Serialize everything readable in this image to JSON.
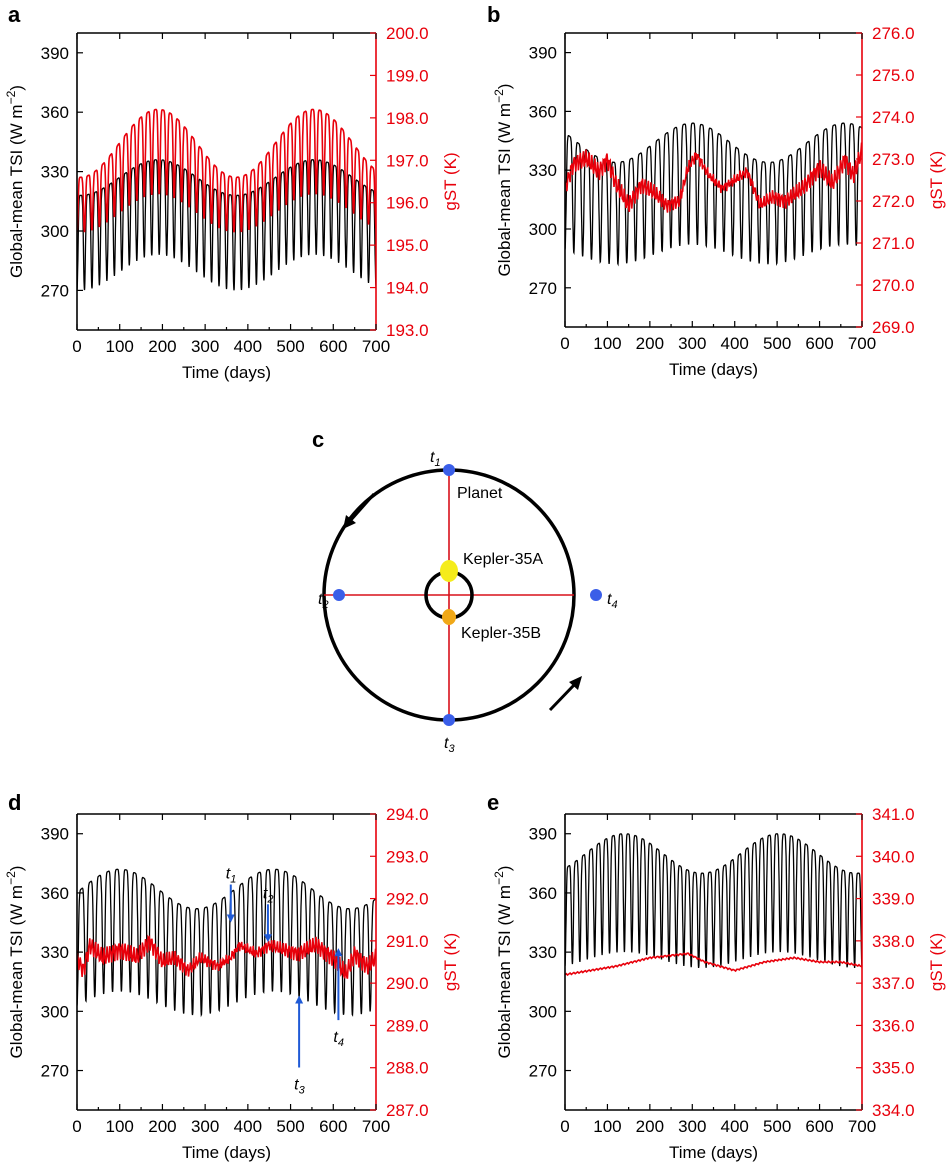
{
  "figure_colors": {
    "tsi": "#000000",
    "gst": "#e8000b",
    "planet": "#3a5ee8",
    "star_a": "#f5ec1b",
    "star_b": "#f0a818",
    "annotation": "#1f5ad6"
  },
  "chart_data": [
    {
      "panel": "a",
      "type": "line",
      "xlabel": "Time (days)",
      "xlim": [
        0,
        700
      ],
      "xticks": [
        0,
        100,
        200,
        300,
        400,
        500,
        600,
        700
      ],
      "ylabel": "Global-mean TSI (W m−2)",
      "ylabel_main": "Global-mean TSI (W m",
      "ylabel_sup": "−2",
      "ylabel_close": ")",
      "ylim": [
        250,
        400
      ],
      "yticks": [
        270,
        300,
        330,
        360,
        390
      ],
      "y2label": "gST (K)",
      "y2lim": [
        193.0,
        200.0
      ],
      "y2ticks": [
        "193.0",
        "194.0",
        "195.0",
        "196.0",
        "197.0",
        "198.0",
        "199.0",
        "200.0"
      ],
      "series": [
        {
          "name": "TSI",
          "axis": "left",
          "color": "#000000",
          "period_days": 17.5,
          "envelope_period_days": 365,
          "peak_range": [
            318,
            336
          ],
          "trough_range": [
            270,
            288
          ],
          "peak_max_day": 190,
          "start_value": 308
        },
        {
          "name": "gST",
          "axis": "right",
          "color": "#e8000b",
          "period_days": 17.5,
          "envelope_period_days": 365,
          "peak_range": [
            196.6,
            198.2
          ],
          "trough_range": [
            195.3,
            196.2
          ],
          "peak_max_day": 190,
          "start_value": 196.0
        }
      ]
    },
    {
      "panel": "b",
      "type": "line",
      "xlabel": "Time (days)",
      "xlim": [
        0,
        700
      ],
      "xticks": [
        0,
        100,
        200,
        300,
        400,
        500,
        600,
        700
      ],
      "ylabel": "Global-mean TSI (W m−2)",
      "ylabel_main": "Global-mean TSI (W m",
      "ylabel_sup": "−2",
      "ylabel_close": ")",
      "ylim": [
        250,
        400
      ],
      "yticks": [
        270,
        300,
        330,
        360,
        390
      ],
      "y2label": "gST (K)",
      "y2lim": [
        269.0,
        276.0
      ],
      "y2ticks": [
        "269.0",
        "270.0",
        "271.0",
        "272.0",
        "273.0",
        "274.0",
        "275.0",
        "276.0"
      ],
      "series": [
        {
          "name": "TSI",
          "axis": "left",
          "color": "#000000",
          "period_days": 20.8,
          "envelope_period_days": 360,
          "peak_range": [
            334,
            354
          ],
          "trough_range": [
            282,
            292
          ],
          "peak_max_day": 300,
          "start_value": 320
        },
        {
          "name": "gST",
          "axis": "right",
          "color": "#e8000b",
          "style": "noisy",
          "points": [
            [
              0,
              272.3
            ],
            [
              20,
              272.9
            ],
            [
              50,
              273.0
            ],
            [
              80,
              272.7
            ],
            [
              100,
              273.0
            ],
            [
              120,
              272.4
            ],
            [
              150,
              271.9
            ],
            [
              180,
              272.4
            ],
            [
              210,
              272.2
            ],
            [
              240,
              271.9
            ],
            [
              270,
              272.0
            ],
            [
              290,
              272.8
            ],
            [
              310,
              273.1
            ],
            [
              340,
              272.6
            ],
            [
              370,
              272.3
            ],
            [
              400,
              272.5
            ],
            [
              430,
              272.7
            ],
            [
              460,
              271.9
            ],
            [
              490,
              272.1
            ],
            [
              520,
              272.0
            ],
            [
              560,
              272.3
            ],
            [
              600,
              272.8
            ],
            [
              630,
              272.4
            ],
            [
              660,
              273.0
            ],
            [
              680,
              272.6
            ],
            [
              700,
              273.2
            ]
          ]
        }
      ]
    },
    {
      "panel": "d",
      "type": "line",
      "xlabel": "Time (days)",
      "xlim": [
        0,
        700
      ],
      "xticks": [
        0,
        100,
        200,
        300,
        400,
        500,
        600,
        700
      ],
      "ylabel": "Global-mean TSI (W m−2)",
      "ylabel_main": "Global-mean TSI (W m",
      "ylabel_sup": "−2",
      "ylabel_close": ")",
      "ylim": [
        250,
        400
      ],
      "yticks": [
        270,
        300,
        330,
        360,
        390
      ],
      "y2label": "gST (K)",
      "y2lim": [
        287.0,
        294.0
      ],
      "y2ticks": [
        "287.0",
        "288.0",
        "289.0",
        "290.0",
        "291.0",
        "292.0",
        "293.0",
        "294.0"
      ],
      "series": [
        {
          "name": "TSI",
          "axis": "left",
          "color": "#000000",
          "period_days": 20.8,
          "envelope_period_days": 360,
          "peak_range": [
            352,
            372
          ],
          "trough_range": [
            298,
            310
          ],
          "peak_max_day": 100,
          "start_value": 345
        },
        {
          "name": "gST",
          "axis": "right",
          "color": "#e8000b",
          "style": "noisy",
          "points": [
            [
              0,
              290.6
            ],
            [
              15,
              290.3
            ],
            [
              30,
              290.9
            ],
            [
              60,
              290.6
            ],
            [
              100,
              290.8
            ],
            [
              140,
              290.6
            ],
            [
              170,
              291.0
            ],
            [
              200,
              290.5
            ],
            [
              230,
              290.6
            ],
            [
              260,
              290.3
            ],
            [
              290,
              290.6
            ],
            [
              330,
              290.4
            ],
            [
              360,
              290.6
            ],
            [
              380,
              290.9
            ],
            [
              420,
              290.7
            ],
            [
              450,
              290.9
            ],
            [
              480,
              290.8
            ],
            [
              520,
              290.7
            ],
            [
              560,
              290.9
            ],
            [
              600,
              290.6
            ],
            [
              630,
              290.2
            ],
            [
              650,
              290.7
            ],
            [
              680,
              290.4
            ],
            [
              700,
              290.6
            ]
          ]
        }
      ],
      "annotations": [
        {
          "label": "t",
          "sub": "1",
          "x": 360,
          "tip_y": 345,
          "direction": "down"
        },
        {
          "label": "t",
          "sub": "2",
          "x": 447,
          "tip_y": 335,
          "direction": "down"
        },
        {
          "label": "t",
          "sub": "3",
          "x": 520,
          "tip_y": 308,
          "direction": "up"
        },
        {
          "label": "t",
          "sub": "4",
          "x": 612,
          "tip_y": 332,
          "direction": "up"
        }
      ]
    },
    {
      "panel": "e",
      "type": "line",
      "xlabel": "Time (days)",
      "xlim": [
        0,
        700
      ],
      "xticks": [
        0,
        100,
        200,
        300,
        400,
        500,
        600,
        700
      ],
      "ylabel": "Global-mean TSI (W m−2)",
      "ylabel_main": "Global-mean TSI (W m",
      "ylabel_sup": "−2",
      "ylabel_close": ")",
      "ylim": [
        250,
        400
      ],
      "yticks": [
        270,
        300,
        330,
        360,
        390
      ],
      "y2label": "gST (K)",
      "y2lim": [
        334.0,
        341.0
      ],
      "y2ticks": [
        "334.0",
        "335.0",
        "336.0",
        "337.0",
        "338.0",
        "339.0",
        "340.0",
        "341.0"
      ],
      "series": [
        {
          "name": "TSI",
          "axis": "left",
          "color": "#000000",
          "period_days": 17.5,
          "envelope_period_days": 365,
          "peak_range": [
            370,
            390
          ],
          "trough_range": [
            322,
            330
          ],
          "peak_max_day": 140,
          "start_value": 355
        },
        {
          "name": "gST",
          "axis": "right",
          "color": "#e8000b",
          "style": "smooth",
          "points": [
            [
              0,
              337.2
            ],
            [
              60,
              337.3
            ],
            [
              120,
              337.4
            ],
            [
              200,
              337.6
            ],
            [
              290,
              337.7
            ],
            [
              330,
              337.5
            ],
            [
              400,
              337.3
            ],
            [
              470,
              337.5
            ],
            [
              540,
              337.6
            ],
            [
              600,
              337.5
            ],
            [
              650,
              337.5
            ],
            [
              700,
              337.4
            ]
          ]
        }
      ]
    }
  ],
  "panels": {
    "a": {
      "letter": "a"
    },
    "b": {
      "letter": "b"
    },
    "d": {
      "letter": "d"
    },
    "e": {
      "letter": "e"
    }
  },
  "diagram_c": {
    "letter": "c",
    "planet_label": "Planet",
    "star_a_label": "Kepler-35A",
    "star_b_label": "Kepler-35B",
    "positions": [
      {
        "label": "t",
        "sub": "1"
      },
      {
        "label": "t",
        "sub": "2"
      },
      {
        "label": "t",
        "sub": "3"
      },
      {
        "label": "t",
        "sub": "4"
      }
    ]
  }
}
